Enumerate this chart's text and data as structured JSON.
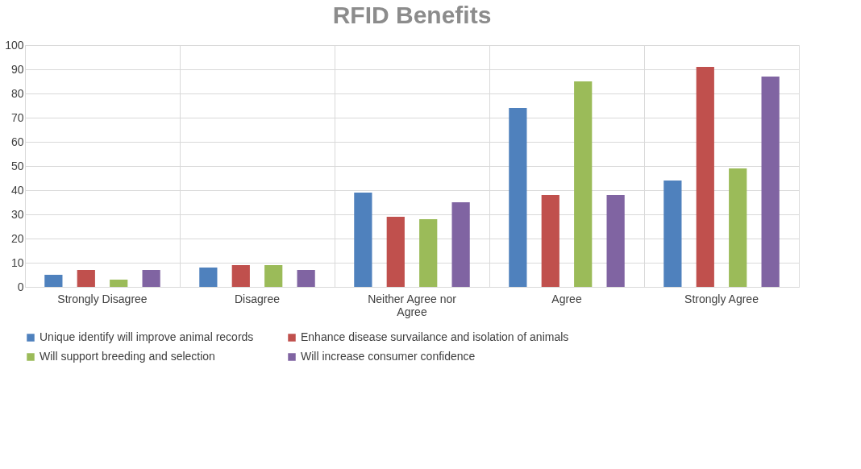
{
  "chart_data": {
    "type": "bar",
    "title": "RFID Benefits",
    "categories": [
      "Strongly Disagree",
      "Disagree",
      "Neither Agree nor Agree",
      "Agree",
      "Strongly Agree"
    ],
    "series": [
      {
        "name": "Unique identify will improve animal records",
        "color": "#4f81bd",
        "values": [
          5,
          8,
          39,
          74,
          44
        ]
      },
      {
        "name": "Enhance disease survailance and isolation of animals",
        "color": "#c0504d",
        "values": [
          7,
          9,
          29,
          38,
          91
        ]
      },
      {
        "name": "Will support breeding and selection",
        "color": "#9bbb59",
        "values": [
          3,
          9,
          28,
          85,
          49
        ]
      },
      {
        "name": "Will increase consumer confidence",
        "color": "#8064a2",
        "values": [
          7,
          7,
          35,
          38,
          87
        ]
      }
    ],
    "ylim": [
      0,
      100
    ],
    "yticks": [
      0,
      10,
      20,
      30,
      40,
      50,
      60,
      70,
      80,
      90,
      100
    ],
    "grid": true,
    "legend": "bottom"
  }
}
